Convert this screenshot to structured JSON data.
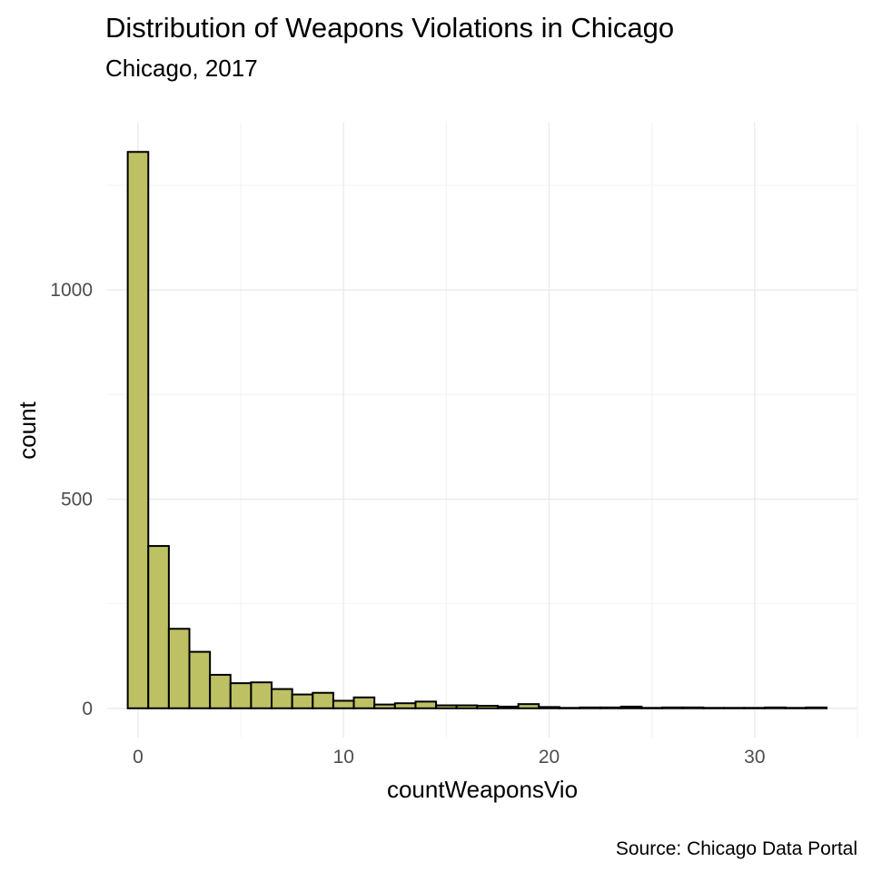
{
  "chart_data": {
    "type": "bar",
    "title": "Distribution of Weapons Violations in Chicago",
    "subtitle": "Chicago, 2017",
    "caption": "Source: Chicago Data Portal",
    "xlabel": "countWeaponsVio",
    "ylabel": "count",
    "bin_width": 1,
    "bins": [
      {
        "x": 0,
        "count": 1330
      },
      {
        "x": 1,
        "count": 388
      },
      {
        "x": 2,
        "count": 190
      },
      {
        "x": 3,
        "count": 135
      },
      {
        "x": 4,
        "count": 80
      },
      {
        "x": 5,
        "count": 60
      },
      {
        "x": 6,
        "count": 62
      },
      {
        "x": 7,
        "count": 46
      },
      {
        "x": 8,
        "count": 33
      },
      {
        "x": 9,
        "count": 37
      },
      {
        "x": 10,
        "count": 18
      },
      {
        "x": 11,
        "count": 26
      },
      {
        "x": 12,
        "count": 9
      },
      {
        "x": 13,
        "count": 12
      },
      {
        "x": 14,
        "count": 16
      },
      {
        "x": 15,
        "count": 7
      },
      {
        "x": 16,
        "count": 7
      },
      {
        "x": 17,
        "count": 6
      },
      {
        "x": 18,
        "count": 4
      },
      {
        "x": 19,
        "count": 10
      },
      {
        "x": 20,
        "count": 3
      },
      {
        "x": 21,
        "count": 1
      },
      {
        "x": 22,
        "count": 2
      },
      {
        "x": 23,
        "count": 2
      },
      {
        "x": 24,
        "count": 4
      },
      {
        "x": 25,
        "count": 1
      },
      {
        "x": 26,
        "count": 2
      },
      {
        "x": 27,
        "count": 2
      },
      {
        "x": 28,
        "count": 1
      },
      {
        "x": 29,
        "count": 1
      },
      {
        "x": 30,
        "count": 1
      },
      {
        "x": 31,
        "count": 2
      },
      {
        "x": 32,
        "count": 1
      },
      {
        "x": 33,
        "count": 2
      }
    ],
    "x_ticks": [
      0,
      10,
      20,
      30
    ],
    "y_ticks": [
      0,
      500,
      1000
    ],
    "xlim": [
      -1.5,
      35
    ],
    "ylim": [
      -70,
      1400
    ],
    "grid": true,
    "legend": "none",
    "colors": {
      "bar_fill": "#bdc164",
      "bar_outline": "#000000",
      "grid": "#ebebeb"
    }
  }
}
